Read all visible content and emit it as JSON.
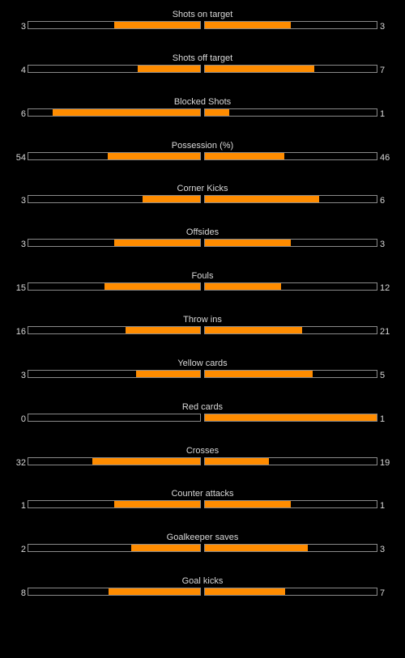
{
  "colors": {
    "background": "#000000",
    "bar_fill": "#ff8c00",
    "bar_border": "#8a8a8a",
    "text": "#d9d9d9"
  },
  "stats": [
    {
      "title": "Shots on target",
      "home": "3",
      "away": "3",
      "home_share": 0.5,
      "away_share": 0.5
    },
    {
      "title": "Shots off target",
      "home": "4",
      "away": "7",
      "home_share": 0.3636,
      "away_share": 0.6364
    },
    {
      "title": "Blocked Shots",
      "home": "6",
      "away": "1",
      "home_share": 0.8571,
      "away_share": 0.1429
    },
    {
      "title": "Possession (%)",
      "home": "54",
      "away": "46",
      "home_share": 0.54,
      "away_share": 0.46
    },
    {
      "title": "Corner Kicks",
      "home": "3",
      "away": "6",
      "home_share": 0.3333,
      "away_share": 0.6667
    },
    {
      "title": "Offsides",
      "home": "3",
      "away": "3",
      "home_share": 0.5,
      "away_share": 0.5
    },
    {
      "title": "Fouls",
      "home": "15",
      "away": "12",
      "home_share": 0.5556,
      "away_share": 0.4444
    },
    {
      "title": "Throw ins",
      "home": "16",
      "away": "21",
      "home_share": 0.4324,
      "away_share": 0.5676
    },
    {
      "title": "Yellow cards",
      "home": "3",
      "away": "5",
      "home_share": 0.375,
      "away_share": 0.625
    },
    {
      "title": "Red cards",
      "home": "0",
      "away": "1",
      "home_share": 0.0,
      "away_share": 1.0
    },
    {
      "title": "Crosses",
      "home": "32",
      "away": "19",
      "home_share": 0.6275,
      "away_share": 0.3725
    },
    {
      "title": "Counter attacks",
      "home": "1",
      "away": "1",
      "home_share": 0.5,
      "away_share": 0.5
    },
    {
      "title": "Goalkeeper saves",
      "home": "2",
      "away": "3",
      "home_share": 0.4,
      "away_share": 0.6
    },
    {
      "title": "Goal kicks",
      "home": "8",
      "away": "7",
      "home_share": 0.5333,
      "away_share": 0.4667
    }
  ]
}
